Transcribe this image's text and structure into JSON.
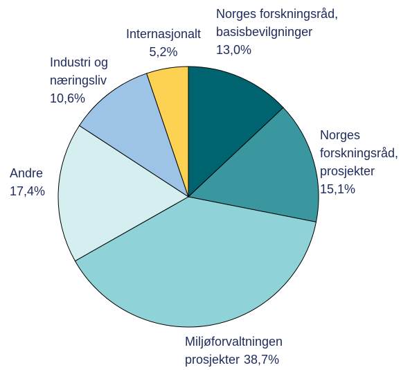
{
  "chart_data": {
    "type": "pie",
    "categories": [
      [
        "Norges forskningsråd,",
        "basisbevilgninger"
      ],
      [
        "Norges",
        "forskningsråd,",
        "prosjekter"
      ],
      [
        "Miljøforvaltningen",
        "prosjekter"
      ],
      [
        "Andre"
      ],
      [
        "Industri og",
        "næringsliv"
      ],
      [
        "Internasjonalt"
      ]
    ],
    "values": [
      13.0,
      15.1,
      38.7,
      17.4,
      10.6,
      5.2
    ],
    "value_labels": [
      "13,0%",
      "15,1%",
      "38,7%",
      "17,4%",
      "10,6%",
      "5,2%"
    ],
    "colors": [
      "#006470",
      "#3a97a0",
      "#8fd3d8",
      "#d5eef0",
      "#9dc3e6",
      "#fdd252"
    ]
  }
}
